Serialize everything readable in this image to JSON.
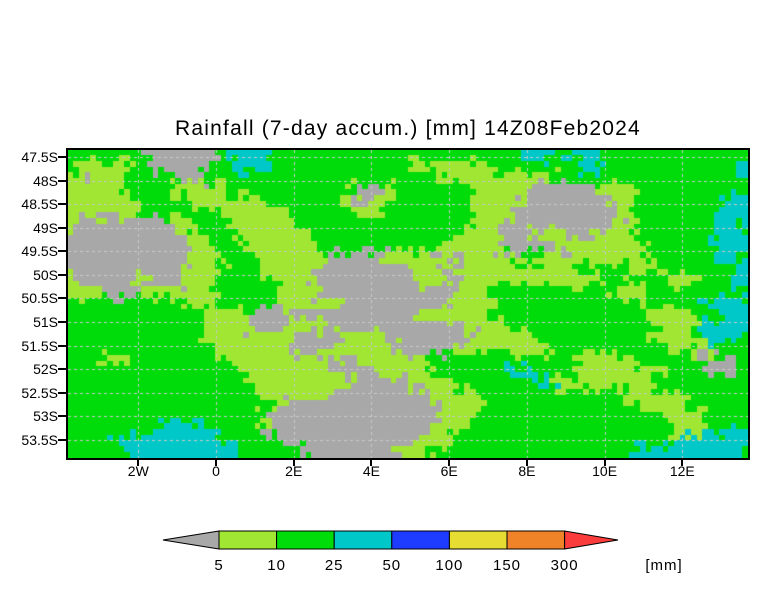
{
  "title": "Rainfall (7-day accum.) [mm] 14Z08Feb2024",
  "chart_data": {
    "type": "heatmap",
    "title": "Rainfall (7-day accum.) [mm] 14Z08Feb2024",
    "x_axis": {
      "tick_labels": [
        "2W",
        "0",
        "2E",
        "4E",
        "6E",
        "8E",
        "10E",
        "12E"
      ]
    },
    "y_axis": {
      "tick_labels": [
        "47.5S",
        "48S",
        "48.5S",
        "49S",
        "49.5S",
        "50S",
        "50.5S",
        "51S",
        "51.5S",
        "52S",
        "52.5S",
        "53S",
        "53.5S"
      ]
    },
    "lon_range_deg_east": [
      -3.8,
      13.6
    ],
    "lat_range_deg_south": [
      47.35,
      53.9
    ],
    "grid_on": true,
    "category_meaning_mm": {
      "A": "0-5",
      "Y": "5-10",
      "G": "10-25",
      "C": "25-50"
    },
    "colors": {
      "A": "#a8a8a8",
      "Y": "#a0e632",
      "G": "#00dc0a",
      "C": "#00c8c8",
      "gridline": "#c9c9c9"
    },
    "grid_rows": [
      "GGGGGGGAAAAAAGCCCCGGGGGGGGGGGGGGGGGGGGGGCCCGCCCGGGGGGGGGGGGG",
      "GYYYYYGGAAAAGGGCCCGGGGGGGGGGGGYYYYYYYGGGGGGGGCCGGGGGGGGGGGGC",
      "YAYYYGGGGGAAGGGGGGGGGGGGGGGGGGGGGYYYYYYYYYYGGGGGGGGGGGGGGGGC",
      "YYYYYGGGGYYYYYGGGGGGGGGGGYAAYGGGGGGGYYYYYAAAAAAYYYGGGGGGGGGG",
      "YYYYYYGGGGGYYYYYYGGGGGGGYAAYYGGGGGGGYYYYAAAAAAAAYYGGGGGGGGCC",
      "YYYYYYGGGGGGGYYYYYYGGGGGGYYYGGGGGGGGYYYAAAAAAAAAAYGGGGGGGCCC",
      "YAAAAAAAAYYGGGYYYYYYGGGGGGGGGGGGGGGGYYYAAAAAAAAAYYGGGGGGGCCG",
      "AAAAAAAAAAYYGGGYYYYYYGGGGGGGGGGGGGGYYYAAAYYYAAYYYYGGGGGGGCCC",
      "AAAAAAAAAAAYYGGGYYYYYYGGGGGGGGGGGYYYYYAAAAAAYYYYYYYGGGGGGCCC",
      "AAAAAAAAAAAYYYGGGYYYYYYAAAAAYYYYAYAYYYYGGGYYYYYYYYYGGGGGGCCG",
      "AAAAAAAAAAYYYGGGGYYYYYAAAAAAAAYYYAAYYYYYYYYYYGGGGYYYYGGGGGGC",
      "YAAAAAYAAAYYYGGGGGYYYAAAAAAAAAAYYYAYYYYYYYYYYYYGGGGGGYYYGGGC",
      "YYYAAAYYYYYYYGGGGGGYYYAAAAAAAAAAAAYYYGGGGGGGGGGGYYYGGGGGGGGG",
      "GGGGGGGGGGYYYGGGGGYYYYYYAAAAAAAAAAYYYYGGGGGGGGGGGGGGGGGGCCCC",
      "GGGGGGGGGGGGYYYYYAAAAAAAAAAAAAAYYYYYYGGGGGGGGGGGGGGYYYYGGGCC",
      "GGGGGGGGGGGGYYYYAAAYYYYAAAAAAAAAAAAYYYYGGGGGGGGGGGGGYYYYCCCC",
      "GGGGGGGGGGGGYYYYYYYYAAAAYYYYAAAAAAAAYYYYYGGGGGGGGGGYYYYGCCCG",
      "GGGGGGGGGGGGGYYYYYYYAAAYYYYYYAAAAAYYYYYYYYYGGGGGGGGGGYYYYGGG",
      "GGGYYGGGGGGGGGYYYYYYYYYAAAYYYYYYGGGGGGGGGGGGGYYYYYGGGGGGAAAG",
      "GGGGGGGGGGGGGGGYYYYYYYYYAAAYYYYYGGGGGGGCCGGGGYYYYYYYYGGGAAAG",
      "GGGGGGGGGGGGGGGGYYYYYYYYYAAAAAYYYYGGGGGGGCCYYYYYYYYGGGGGGGGG",
      "GGGGGGGGGGGGGGGGGYYYYYYAAAAAAAAAYYYYGGGGGGGGGGGGGYYYYYGGGGGG",
      "GGGGGGGGGGGGGGGGGGYAAAAAAAAAAAAAAYYYYGGGGGGGGGGGGGGYYYYGGGGG",
      "GGGGGGGGGGGGGGGGGYAAAAAAAAAAAAAAAYYYGGGGGGGGGGGGGGGGGYYYGGGG",
      "GGGGGGGGCCCCGGGGGAAAAAAAAAAAAAAAYYYGGGGGGGGGGGGGGGGGGYYYGGGC",
      "GGGGCCCCCCCCCCGGGGGAAAAAAAAAAAAYYYGGGGGGGGGGGGGGGGGGGGCCCCCC",
      "GGGGGCCCCCCCCCCGGGGGGAAAAAAAAYYYGGGGGGGGGGGGGGGGGGCCCCCCCCCG"
    ],
    "legend": {
      "boundary_labels": [
        "5",
        "10",
        "25",
        "50",
        "100",
        "150",
        "300"
      ],
      "unit_label": "[mm]",
      "segment_colors": [
        "#a0e632",
        "#00dc0a",
        "#00c8c8",
        "#1e3cff",
        "#e6dc32",
        "#f08228"
      ],
      "under_arrow_color": "#a8a8a8",
      "over_arrow_color": "#fa3c3c"
    }
  }
}
